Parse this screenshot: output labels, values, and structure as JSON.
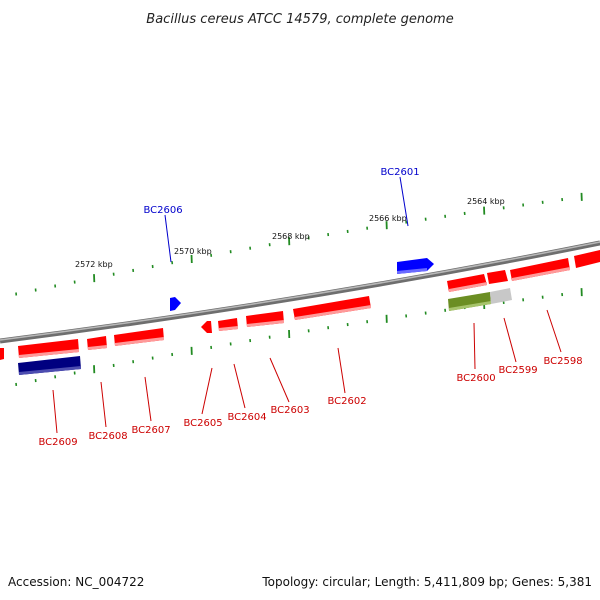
{
  "title": "Bacillus cereus ATCC 14579, complete genome",
  "footer": {
    "accession": "Accession: NC_004722",
    "topology": "Topology: circular; Length: 5,411,809 bp; Genes: 5,381"
  },
  "colors": {
    "forward_gene": "#ff0000",
    "selected_gene": "#0000ff",
    "dark_gene": "#000080",
    "olive_gene": "#6b8e23",
    "label_red": "#cc0000",
    "label_blue": "#0000cc",
    "tick": "#228b22",
    "backbone": "#808080"
  },
  "kbp_labels": [
    "2572 kbp",
    "2570 kbp",
    "2568 kbp",
    "2566 kbp",
    "2564 kbp"
  ],
  "gene_labels": {
    "BC2601": "BC2601",
    "BC2606": "BC2606",
    "BC2609": "BC2609",
    "BC2608": "BC2608",
    "BC2607": "BC2607",
    "BC2605": "BC2605",
    "BC2604": "BC2604",
    "BC2603": "BC2603",
    "BC2602": "BC2602",
    "BC2600": "BC2600",
    "BC2599": "BC2599",
    "BC2598": "BC2598"
  }
}
